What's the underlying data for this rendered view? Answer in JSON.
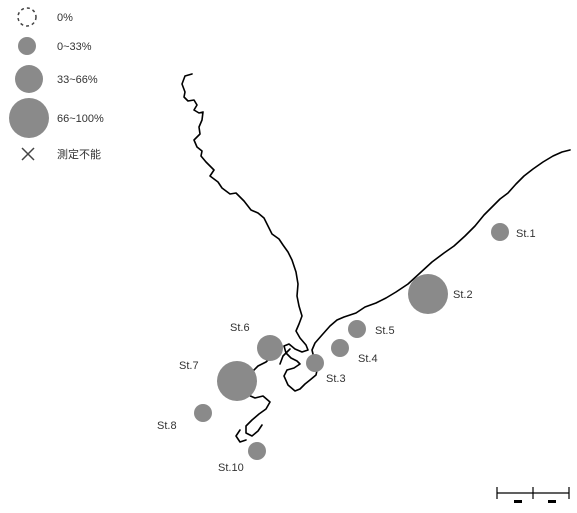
{
  "colors": {
    "circle_fill": "#8a8a8a",
    "coast_line": "#000000",
    "text": "#333333",
    "background": "#ffffff"
  },
  "legend": {
    "items": [
      {
        "symbol": "dashed-circle",
        "label": "0%"
      },
      {
        "symbol": "small-circle",
        "label": "0~33%"
      },
      {
        "symbol": "medium-circle",
        "label": "33~66%"
      },
      {
        "symbol": "large-circle",
        "label": "66~100%"
      },
      {
        "symbol": "cross-mark",
        "label": "測定不能"
      }
    ]
  },
  "stations": [
    {
      "id": "st1",
      "label": "St.1",
      "class": "0~33%"
    },
    {
      "id": "st2",
      "label": "St.2",
      "class": "66~100%"
    },
    {
      "id": "st3",
      "label": "St.3",
      "class": "0~33%"
    },
    {
      "id": "st4",
      "label": "St.4",
      "class": "0~33%"
    },
    {
      "id": "st5",
      "label": "St.5",
      "class": "0~33%"
    },
    {
      "id": "st6",
      "label": "St.6",
      "class": "33~66%"
    },
    {
      "id": "st7",
      "label": "St.7",
      "class": "66~100%"
    },
    {
      "id": "st8",
      "label": "St.8",
      "class": "0~33%"
    },
    {
      "id": "st10",
      "label": "St.10",
      "class": "0~33%"
    }
  ],
  "scale_bar": {
    "icon": "scale-bar"
  }
}
